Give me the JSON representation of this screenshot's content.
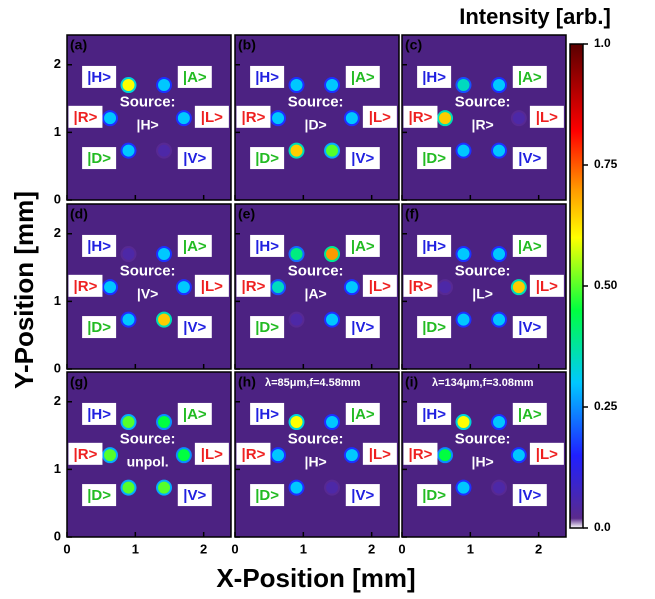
{
  "chart_data": {
    "type": "heatmap",
    "xlabel": "X-Position [mm]",
    "ylabel": "Y-Position [mm]",
    "xlim": [
      0,
      2.4
    ],
    "ylim": [
      0,
      2.44
    ],
    "xticks": [
      0,
      1,
      2
    ],
    "yticks": [
      0,
      1,
      2
    ],
    "colorbar": {
      "title": "Intensity [arb.]",
      "lim": [
        0,
        1
      ],
      "ticks": [
        {
          "value": 0,
          "label": "0.0"
        },
        0.25,
        {
          "value": 0.5,
          "label": "0.50"
        },
        0.75,
        {
          "value": 1,
          "label": "1.0"
        }
      ]
    },
    "source_prefix": "Source:",
    "basis": [
      {
        "label": "|H>",
        "color": "#2020e0"
      },
      {
        "label": "|A>",
        "color": "#22bb22"
      },
      {
        "label": "|R>",
        "color": "#ee2020"
      },
      {
        "label": "|L>",
        "color": "#ee2020"
      },
      {
        "label": "|D>",
        "color": "#22bb22"
      },
      {
        "label": "|V>",
        "color": "#2020e0"
      }
    ],
    "spot_x": [
      0.9,
      1.42,
      0.63,
      1.71,
      0.9,
      1.42
    ],
    "spot_y": [
      1.7,
      1.7,
      1.21,
      1.21,
      0.73,
      0.73
    ],
    "panels": [
      {
        "label": "(a)",
        "source": "|H>",
        "values": [
          0.6,
          0.3,
          0.3,
          0.3,
          0.3,
          0.05
        ]
      },
      {
        "label": "(b)",
        "source": "|D>",
        "values": [
          0.3,
          0.3,
          0.3,
          0.3,
          0.65,
          0.5
        ]
      },
      {
        "label": "(c)",
        "source": "|R>",
        "values": [
          0.35,
          0.3,
          0.65,
          0.05,
          0.3,
          0.3
        ]
      },
      {
        "label": "(d)",
        "source": "|V>",
        "values": [
          0.05,
          0.3,
          0.3,
          0.3,
          0.3,
          0.65
        ]
      },
      {
        "label": "(e)",
        "source": "|A>",
        "values": [
          0.4,
          0.7,
          0.35,
          0.3,
          0.05,
          0.3
        ]
      },
      {
        "label": "(f)",
        "source": "|L>",
        "values": [
          0.3,
          0.3,
          0.05,
          0.65,
          0.3,
          0.3
        ]
      },
      {
        "label": "(g)",
        "source": "unpol.",
        "values": [
          0.5,
          0.45,
          0.5,
          0.45,
          0.5,
          0.5
        ]
      },
      {
        "label": "(h)",
        "annotation": "λ=85μm,f=4.58mm",
        "source": "|H>",
        "values": [
          0.6,
          0.3,
          0.3,
          0.3,
          0.3,
          0.05
        ]
      },
      {
        "label": "(i)",
        "annotation": "λ=134μm,f=3.08mm",
        "source": "|H>",
        "values": [
          0.6,
          0.3,
          0.45,
          0.3,
          0.3,
          0.05
        ]
      }
    ]
  }
}
